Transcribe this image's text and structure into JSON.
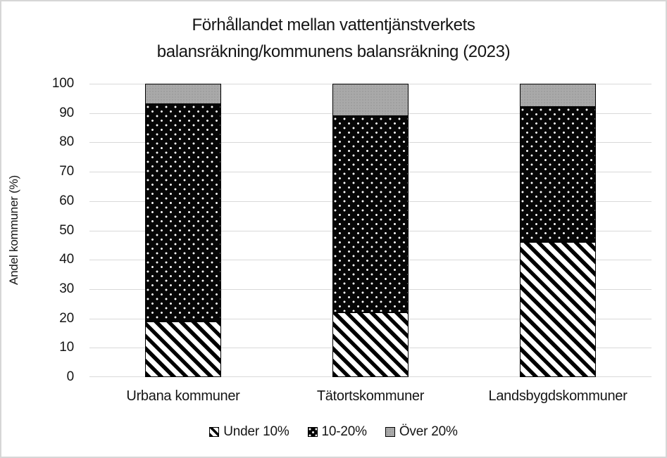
{
  "title": {
    "line1": "Förhållandet mellan vattentjänstverkets",
    "line2": "balansräkning/kommunens balansräkning (2023)"
  },
  "y_axis": {
    "label": "Andel kommuner (%)",
    "ticks": [
      0,
      10,
      20,
      30,
      40,
      50,
      60,
      70,
      80,
      90,
      100
    ],
    "min": 0,
    "max": 100
  },
  "chart_data": {
    "type": "bar",
    "stacked": true,
    "title": "Förhållandet mellan vattentjänstverkets balansräkning/kommunens balansräkning (2023)",
    "ylabel": "Andel kommuner (%)",
    "ylim": [
      0,
      100
    ],
    "grid": true,
    "legend_position": "bottom",
    "categories": [
      "Urbana kommuner",
      "Tätortskommuner",
      "Landsbygdskommuner"
    ],
    "series": [
      {
        "name": "Under 10%",
        "pattern": "diagonal-hatch",
        "fill": "#ffffff",
        "values": [
          19,
          22,
          46
        ]
      },
      {
        "name": "10-20%",
        "pattern": "white-dots-on-black",
        "fill": "#060606",
        "values": [
          74,
          67,
          46
        ]
      },
      {
        "name": "Över 20%",
        "pattern": "solid-gray",
        "fill": "#a9a9a9",
        "values": [
          7,
          11,
          8
        ]
      }
    ]
  },
  "colors": {
    "gridline": "#d9d9d9",
    "text": "#151515",
    "frame_border": "#d6d6d6",
    "bar_border": "#000000"
  }
}
